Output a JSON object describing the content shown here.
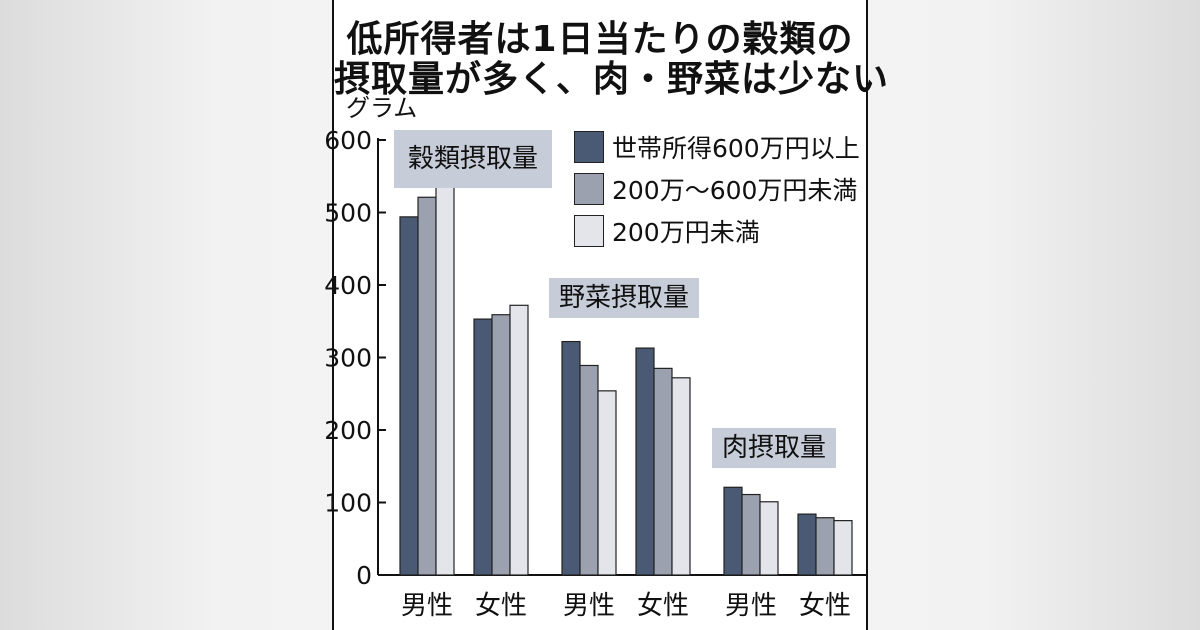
{
  "title": {
    "line1": "低所得者は1日当たりの穀類の",
    "line2": "摂取量が多く、肉・野菜は少ない"
  },
  "colors": {
    "high": "#4b5a74",
    "mid": "#9ba1ae",
    "low": "#e3e5ea",
    "label_bg": "#c6ccd8"
  },
  "chart_data": {
    "type": "bar",
    "ylabel": "グラム",
    "ylim": [
      0,
      600
    ],
    "yticks": [
      0,
      100,
      200,
      300,
      400,
      500,
      600
    ],
    "categories": [
      "男性",
      "女性",
      "男性",
      "女性",
      "男性",
      "女性"
    ],
    "groups": [
      {
        "label": "穀類摂取量",
        "categories": [
          "男性",
          "女性"
        ]
      },
      {
        "label": "野菜摂取量",
        "categories": [
          "男性",
          "女性"
        ]
      },
      {
        "label": "肉摂取量",
        "categories": [
          "男性",
          "女性"
        ]
      }
    ],
    "series": [
      {
        "name": "世帯所得600万円以上",
        "values": [
          494,
          353,
          322,
          313,
          121,
          84
        ]
      },
      {
        "name": "200万～600万円未満",
        "values": [
          521,
          359,
          289,
          285,
          111,
          79
        ]
      },
      {
        "name": "200万円未満",
        "values": [
          536,
          372,
          254,
          272,
          101,
          75
        ]
      }
    ],
    "legend_position": "top-right",
    "grid": false
  }
}
